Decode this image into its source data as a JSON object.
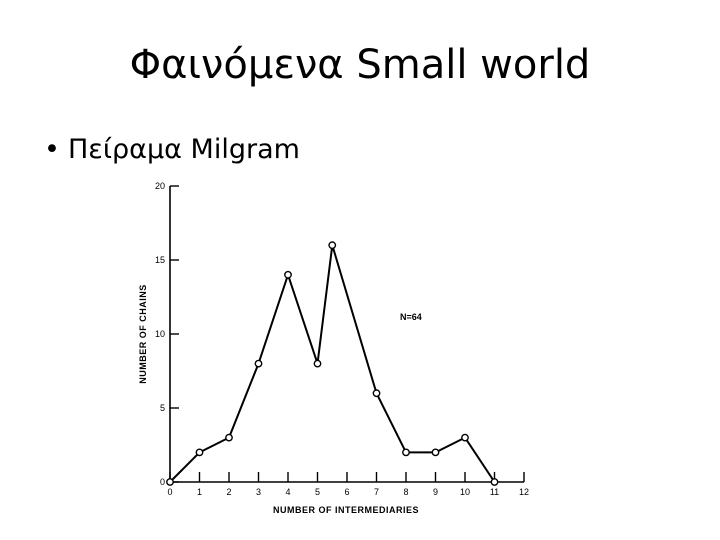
{
  "slide": {
    "title": "Φαινόμενα Small world",
    "bullet_marker": "•",
    "bullet_text": "Πείραμα Milgram"
  },
  "chart_data": {
    "type": "line",
    "title": "",
    "xlabel": "NUMBER OF INTERMEDIARIES",
    "ylabel": "NUMBER OF CHAINS",
    "annotation": "N=64",
    "xlim": [
      0,
      12
    ],
    "ylim": [
      0,
      20
    ],
    "x_ticks": [
      0,
      1,
      2,
      3,
      4,
      5,
      6,
      7,
      8,
      9,
      10,
      11,
      12
    ],
    "y_ticks": [
      0,
      5,
      10,
      15,
      20
    ],
    "grid": false,
    "series": [
      {
        "x": [
          0,
          1,
          2,
          3,
          4,
          5,
          5.5,
          7,
          8,
          9,
          10,
          11
        ],
        "y": [
          0,
          2,
          3,
          8,
          14,
          8,
          16,
          6,
          2,
          2,
          3,
          0
        ]
      }
    ],
    "colors": {
      "line": "#000000",
      "marker_fill": "#ffffff"
    }
  }
}
